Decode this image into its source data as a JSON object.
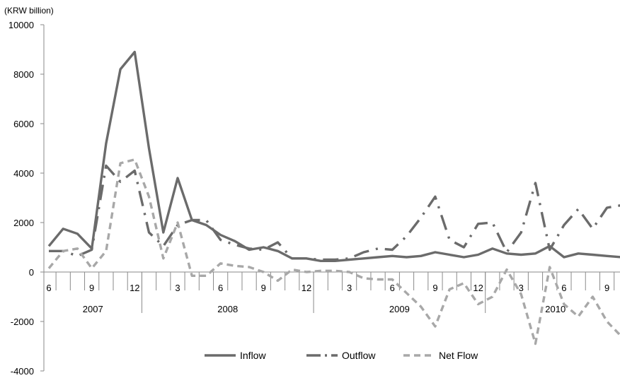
{
  "chart_data": {
    "type": "line",
    "unit_label": "(KRW billion)",
    "ylim": [
      -4000,
      10000
    ],
    "yticks": [
      -4000,
      -2000,
      0,
      2000,
      4000,
      6000,
      8000,
      10000
    ],
    "x": [
      "2007-06",
      "2007-07",
      "2007-08",
      "2007-09",
      "2007-10",
      "2007-11",
      "2007-12",
      "2008-01",
      "2008-02",
      "2008-03",
      "2008-04",
      "2008-05",
      "2008-06",
      "2008-07",
      "2008-08",
      "2008-09",
      "2008-10",
      "2008-11",
      "2008-12",
      "2009-01",
      "2009-02",
      "2009-03",
      "2009-04",
      "2009-05",
      "2009-06",
      "2009-07",
      "2009-08",
      "2009-09",
      "2009-10",
      "2009-11",
      "2009-12",
      "2010-01",
      "2010-02",
      "2010-03",
      "2010-04",
      "2010-05",
      "2010-06",
      "2010-07",
      "2010-08",
      "2010-09",
      "2010-10"
    ],
    "month_tick_labels": [
      {
        "index": 0,
        "label": "6"
      },
      {
        "index": 3,
        "label": "9"
      },
      {
        "index": 6,
        "label": "12"
      },
      {
        "index": 9,
        "label": "3"
      },
      {
        "index": 12,
        "label": "6"
      },
      {
        "index": 15,
        "label": "9"
      },
      {
        "index": 18,
        "label": "12"
      },
      {
        "index": 21,
        "label": "3"
      },
      {
        "index": 24,
        "label": "6"
      },
      {
        "index": 27,
        "label": "9"
      },
      {
        "index": 30,
        "label": "12"
      },
      {
        "index": 33,
        "label": "3"
      },
      {
        "index": 36,
        "label": "6"
      },
      {
        "index": 39,
        "label": "9"
      }
    ],
    "years": [
      {
        "label": "2007",
        "start": 0,
        "end": 7
      },
      {
        "label": "2008",
        "start": 7,
        "end": 19
      },
      {
        "label": "2009",
        "start": 19,
        "end": 31
      },
      {
        "label": "2010",
        "start": 31,
        "end": 41
      }
    ],
    "series": [
      {
        "name": "Inflow",
        "color": "#6b6b6b",
        "dash": "solid",
        "values": [
          1050,
          1750,
          1550,
          950,
          5200,
          8200,
          8900,
          5000,
          1600,
          3800,
          2100,
          1900,
          1500,
          1250,
          900,
          1000,
          850,
          550,
          550,
          450,
          450,
          500,
          550,
          600,
          650,
          600,
          650,
          800,
          700,
          600,
          700,
          950,
          750,
          700,
          750,
          1050,
          600,
          750,
          700,
          650,
          600
        ]
      },
      {
        "name": "Outflow",
        "color": "#6b6b6b",
        "dash": "dashdot",
        "values": [
          850,
          850,
          650,
          900,
          4300,
          3650,
          4100,
          1600,
          1050,
          1900,
          2100,
          2100,
          1300,
          1100,
          950,
          900,
          1200,
          550,
          550,
          500,
          500,
          550,
          800,
          950,
          900,
          1450,
          2200,
          3050,
          1300,
          1000,
          1950,
          2000,
          800,
          1600,
          3600,
          900,
          1900,
          2550,
          1750,
          2600,
          2700
        ]
      },
      {
        "name": "Net Flow",
        "color": "#a8a8a8",
        "dash": "dashed",
        "values": [
          150,
          850,
          950,
          150,
          850,
          4400,
          4550,
          3050,
          550,
          2000,
          -150,
          -150,
          350,
          250,
          200,
          0,
          -350,
          100,
          0,
          50,
          50,
          0,
          -250,
          -300,
          -300,
          -850,
          -1400,
          -2200,
          -700,
          -450,
          -1300,
          -1000,
          100,
          -900,
          -2900,
          200,
          -1300,
          -1800,
          -1000,
          -2000,
          -2600
        ]
      }
    ]
  }
}
